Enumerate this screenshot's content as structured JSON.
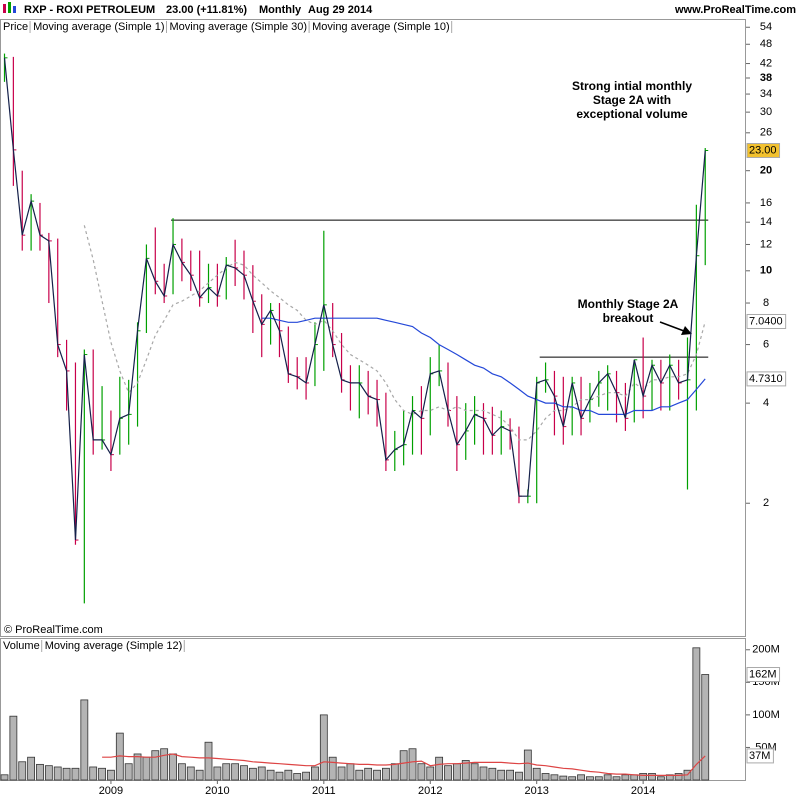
{
  "header": {
    "symbol": "RXP - ROXI PETROLEUM",
    "quote": "23.00 (+11.81%)",
    "period": "Monthly",
    "date": "Aug 29 2014",
    "site": "www.ProRealTime.com"
  },
  "chart_data": [
    {
      "type": "ohlc",
      "price": {
        "name": "Price",
        "up_color": "#00a000",
        "down_color": "#c8004a",
        "high": [
          45,
          44,
          20,
          17,
          16,
          13,
          12.5,
          6.2,
          5.3,
          5.8,
          5.8,
          4.5,
          3.8,
          4.8,
          4.7,
          7.0,
          12,
          13.5,
          10.5,
          14.4,
          12.5,
          11.5,
          11.5,
          10.5,
          10.5,
          11,
          12.4,
          11.5,
          10.4,
          8.5,
          8,
          8,
          6.8,
          5.5,
          5.5,
          7,
          13.2,
          8,
          6.5,
          5.2,
          5.2,
          5,
          4.7,
          4.3,
          3.3,
          3.8,
          4.2,
          4.5,
          5.5,
          6,
          5.3,
          4.2,
          4,
          4.2,
          4,
          3.9,
          3.8,
          3.6,
          3.4,
          2.2,
          4.8,
          5.3,
          5,
          4.8,
          4.8,
          4.8,
          4.6,
          5,
          5.2,
          5,
          4.6,
          5.4,
          6.3,
          5.4,
          5.4,
          5.6,
          5.4,
          6.3,
          15.8,
          23.4
        ],
        "low": [
          37,
          18,
          11.5,
          11.5,
          11.5,
          8,
          5.5,
          3.8,
          1.5,
          1.0,
          2.8,
          2.9,
          2.5,
          2.8,
          3.0,
          3.4,
          6.5,
          8.5,
          8.0,
          8.5,
          9.3,
          8.7,
          7.8,
          8.0,
          7.8,
          8.2,
          9.0,
          8.2,
          6.5,
          5.5,
          6.0,
          5.5,
          4.6,
          4.4,
          4.1,
          4.5,
          5.0,
          5.5,
          4.3,
          3.8,
          3.6,
          3.7,
          3.4,
          2.5,
          2.5,
          2.6,
          2.8,
          2.8,
          3.2,
          4.5,
          3.4,
          2.5,
          2.7,
          3.0,
          2.8,
          2.8,
          2.8,
          2.9,
          2.0,
          2.0,
          2.0,
          4.3,
          3.2,
          3.0,
          3.2,
          3.2,
          3.5,
          3.9,
          3.8,
          3.5,
          3.3,
          3.5,
          3.6,
          3.8,
          3.8,
          3.8,
          4.1,
          2.2,
          3.8,
          10.4
        ]
      },
      "series": [
        {
          "name": "Moving average (Simple 1)",
          "color": "#14204a",
          "dashed": false,
          "values": [
            43.7,
            23.1,
            12.8,
            16.2,
            12.8,
            12.3,
            6.0,
            5.0,
            1.55,
            5.6,
            3.1,
            3.1,
            2.8,
            3.6,
            3.7,
            6.6,
            10.9,
            9.3,
            8.4,
            12.0,
            10.6,
            9.7,
            8.3,
            8.9,
            8.4,
            10.4,
            10.2,
            9.7,
            8.1,
            6.9,
            7.6,
            6.6,
            4.9,
            4.8,
            4.6,
            6.0,
            7.9,
            6.0,
            4.7,
            4.6,
            4.6,
            4.2,
            4.1,
            2.7,
            2.9,
            3.0,
            3.8,
            3.6,
            4.9,
            5.0,
            3.8,
            3.0,
            3.3,
            3.7,
            3.6,
            3.2,
            3.4,
            3.3,
            2.1,
            2.1,
            4.6,
            4.7,
            4.2,
            3.4,
            4.6,
            3.6,
            4.1,
            4.6,
            4.9,
            4.3,
            3.6,
            5.4,
            4.2,
            5.2,
            4.6,
            5.2,
            4.6,
            4.7,
            11.1,
            23
          ]
        },
        {
          "name": "Moving average (Simple 30)",
          "color": "#2448d8",
          "dashed": false,
          "values": [
            null,
            null,
            null,
            null,
            null,
            null,
            null,
            null,
            null,
            null,
            null,
            null,
            null,
            null,
            null,
            null,
            null,
            null,
            null,
            null,
            null,
            null,
            null,
            null,
            null,
            null,
            null,
            null,
            null,
            7.2,
            7.2,
            7.1,
            7.0,
            7.0,
            7.1,
            7.2,
            7.2,
            7.2,
            7.2,
            7.2,
            7.2,
            7.2,
            7.2,
            7.1,
            7.0,
            6.9,
            6.8,
            6.5,
            6.3,
            6.0,
            5.8,
            5.6,
            5.4,
            5.2,
            5.1,
            4.9,
            4.8,
            4.6,
            4.4,
            4.2,
            4.1,
            4.0,
            4.0,
            3.9,
            3.9,
            3.8,
            3.8,
            3.7,
            3.7,
            3.7,
            3.7,
            3.8,
            3.8,
            3.8,
            3.9,
            3.9,
            4.0,
            4.1,
            4.4,
            4.731
          ]
        },
        {
          "name": "Moving average (Simple 10)",
          "color": "#a8a8a8",
          "dashed": true,
          "values": [
            null,
            null,
            null,
            null,
            null,
            null,
            null,
            null,
            null,
            13.7,
            10.8,
            8.1,
            6.1,
            5.0,
            4.3,
            4.6,
            5.4,
            6.4,
            7.1,
            7.9,
            8.1,
            8.4,
            8.7,
            9.2,
            9.7,
            10.2,
            10.6,
            10.4,
            9.7,
            9.2,
            8.7,
            8.3,
            7.9,
            7.6,
            7.1,
            6.9,
            7.1,
            6.6,
            6.0,
            5.6,
            5.4,
            5.2,
            5.0,
            4.6,
            4.1,
            3.8,
            3.7,
            3.8,
            3.8,
            3.9,
            3.8,
            3.9,
            3.8,
            3.8,
            3.8,
            3.7,
            3.6,
            3.4,
            3.1,
            3.1,
            3.3,
            3.6,
            3.8,
            3.8,
            3.9,
            4.1,
            4.1,
            4.2,
            4.3,
            4.3,
            4.2,
            4.6,
            4.4,
            4.7,
            4.7,
            4.8,
            4.8,
            4.9,
            5.6,
            7.04
          ]
        }
      ],
      "log_scale": true,
      "ylim": [
        0.82,
        56
      ],
      "yticks": [
        2,
        4,
        6,
        8,
        10,
        12,
        14,
        16,
        20,
        26,
        30,
        34,
        38,
        42,
        48,
        54
      ],
      "tags": [
        {
          "value": 23,
          "label": "23.00",
          "color": "#000000",
          "fill": "#f2c12e"
        },
        {
          "value": 7.04,
          "label": "7.0400",
          "color": "#888888",
          "fill": "#ffffff"
        },
        {
          "value": 4.731,
          "label": "4.7310",
          "color": "#2448d8",
          "fill": "#ffffff"
        }
      ],
      "levels": [
        14.2,
        5.5
      ],
      "annotations": [
        {
          "lines": [
            "Strong intial monthly",
            "Stage 2A with",
            "exceptional volume"
          ]
        },
        {
          "lines": [
            "Monthly Stage 2A",
            "breakout"
          ]
        }
      ],
      "copyright": "© ProRealTime.com"
    },
    {
      "type": "bar",
      "name": "Volume",
      "color": "#b4b4b4",
      "categories": [
        null,
        null,
        null,
        null,
        null,
        null,
        null,
        null,
        null,
        null,
        null,
        null,
        "2009",
        null,
        null,
        null,
        null,
        null,
        null,
        null,
        null,
        null,
        null,
        null,
        "2010",
        null,
        null,
        null,
        null,
        null,
        null,
        null,
        null,
        null,
        null,
        null,
        "2011",
        null,
        null,
        null,
        null,
        null,
        null,
        null,
        null,
        null,
        null,
        null,
        "2012",
        null,
        null,
        null,
        null,
        null,
        null,
        null,
        null,
        null,
        null,
        null,
        "2013",
        null,
        null,
        null,
        null,
        null,
        null,
        null,
        null,
        null,
        null,
        null,
        "2014",
        null,
        null,
        null,
        null,
        null,
        null,
        null
      ],
      "values": [
        8,
        98,
        28,
        35,
        24,
        22,
        20,
        18,
        18,
        123,
        20,
        18,
        15,
        72,
        25,
        40,
        35,
        45,
        48,
        40,
        25,
        20,
        15,
        58,
        20,
        25,
        25,
        22,
        18,
        20,
        15,
        12,
        15,
        10,
        12,
        20,
        100,
        35,
        20,
        25,
        15,
        18,
        15,
        18,
        25,
        45,
        48,
        25,
        20,
        35,
        22,
        25,
        30,
        25,
        20,
        18,
        15,
        15,
        12,
        46,
        18,
        10,
        8,
        6,
        5,
        8,
        5,
        5,
        8,
        5,
        8,
        8,
        10,
        10,
        5,
        8,
        10,
        15,
        203,
        162
      ],
      "series": [
        {
          "name": "Moving average (Simple 12)",
          "color": "#dd4444",
          "values": [
            null,
            null,
            null,
            null,
            null,
            null,
            null,
            null,
            null,
            null,
            null,
            35,
            35,
            37,
            36,
            36,
            35,
            35,
            38,
            40,
            36,
            35,
            34,
            34,
            33,
            32,
            31,
            30,
            28,
            27,
            26,
            25,
            24,
            23,
            22,
            22,
            28,
            27,
            26,
            25,
            24,
            24,
            23,
            23,
            24,
            26,
            28,
            29,
            22,
            24,
            25,
            25,
            26,
            27,
            27,
            27,
            27,
            26,
            25,
            26,
            23,
            22,
            20,
            18,
            17,
            15,
            13,
            12,
            10,
            9,
            9,
            8,
            7,
            7,
            7,
            7,
            7,
            8,
            24,
            37
          ]
        }
      ],
      "ylim": [
        0,
        215
      ],
      "yticks": [
        {
          "value": 50,
          "label": "50M"
        },
        {
          "value": 100,
          "label": "100M"
        },
        {
          "value": 150,
          "label": "150M"
        },
        {
          "value": 200,
          "label": "200M"
        }
      ],
      "tags": [
        {
          "value": 162,
          "label": "162M",
          "color": "#888888",
          "fill": "#ffffff"
        },
        {
          "value": 37,
          "label": "37M",
          "color": "#dd4444",
          "fill": "#ffffff"
        }
      ]
    }
  ]
}
